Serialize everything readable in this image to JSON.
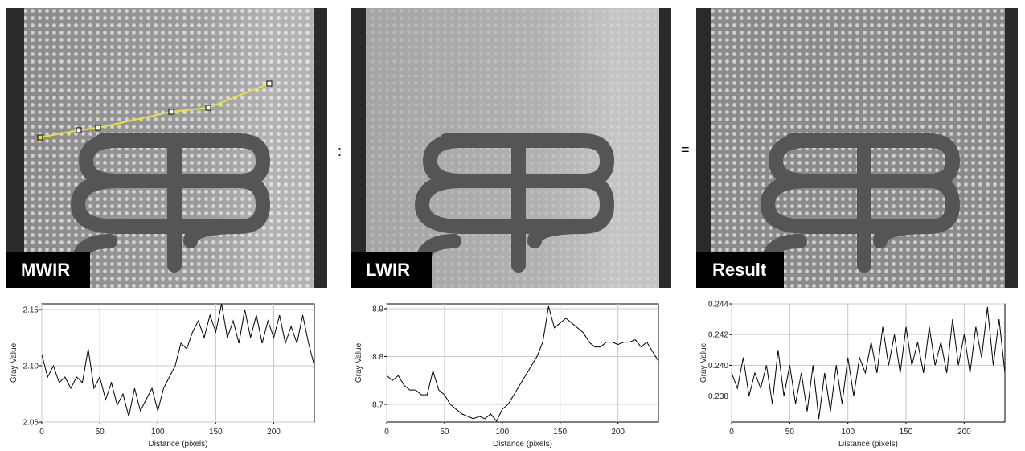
{
  "panels": [
    {
      "label": "MWIR"
    },
    {
      "label": "LWIR"
    },
    {
      "label": "Result"
    }
  ],
  "operators": [
    ":",
    "="
  ],
  "chart_data": [
    {
      "type": "line",
      "xlabel": "Distance (pixels)",
      "ylabel": "Gray Value",
      "x": [
        0,
        5,
        10,
        15,
        20,
        25,
        30,
        35,
        40,
        45,
        50,
        55,
        60,
        65,
        70,
        75,
        80,
        85,
        90,
        95,
        100,
        105,
        110,
        115,
        120,
        125,
        130,
        135,
        140,
        145,
        150,
        155,
        160,
        165,
        170,
        175,
        180,
        185,
        190,
        195,
        200,
        205,
        210,
        215,
        220,
        225,
        230,
        235
      ],
      "series": [
        {
          "color": "#000000",
          "values": [
            2.11,
            2.09,
            2.1,
            2.085,
            2.09,
            2.08,
            2.09,
            2.085,
            2.115,
            2.08,
            2.09,
            2.07,
            2.085,
            2.065,
            2.075,
            2.055,
            2.08,
            2.06,
            2.07,
            2.08,
            2.06,
            2.08,
            2.09,
            2.1,
            2.12,
            2.115,
            2.13,
            2.14,
            2.125,
            2.145,
            2.13,
            2.155,
            2.125,
            2.14,
            2.12,
            2.15,
            2.125,
            2.145,
            2.12,
            2.14,
            2.125,
            2.145,
            2.12,
            2.135,
            2.12,
            2.145,
            2.12,
            2.1
          ]
        }
      ],
      "xlim": [
        0,
        235
      ],
      "ylim": [
        2.05,
        2.155
      ],
      "xticks": [
        0,
        50,
        100,
        150,
        200
      ],
      "yticks": [
        {
          "value": 2.05,
          "label": "2.05"
        },
        {
          "value": 2.1,
          "label": "2.10"
        },
        {
          "value": 2.15,
          "label": "2.15"
        }
      ],
      "grid": true
    },
    {
      "type": "line",
      "xlabel": "Distance (pixels)",
      "ylabel": "Gray Value",
      "x": [
        0,
        5,
        10,
        15,
        20,
        25,
        30,
        35,
        40,
        45,
        50,
        55,
        60,
        65,
        70,
        75,
        80,
        85,
        90,
        95,
        100,
        105,
        110,
        115,
        120,
        125,
        130,
        135,
        140,
        145,
        150,
        155,
        160,
        165,
        170,
        175,
        180,
        185,
        190,
        195,
        200,
        205,
        210,
        215,
        220,
        225,
        230,
        235
      ],
      "series": [
        {
          "color": "#000000",
          "values": [
            8.76,
            8.75,
            8.76,
            8.74,
            8.73,
            8.73,
            8.72,
            8.72,
            8.77,
            8.73,
            8.72,
            8.7,
            8.69,
            8.68,
            8.675,
            8.67,
            8.675,
            8.67,
            8.68,
            8.665,
            8.69,
            8.7,
            8.72,
            8.74,
            8.76,
            8.78,
            8.8,
            8.83,
            8.905,
            8.86,
            8.87,
            8.88,
            8.87,
            8.86,
            8.85,
            8.83,
            8.82,
            8.82,
            8.83,
            8.83,
            8.825,
            8.83,
            8.83,
            8.835,
            8.82,
            8.83,
            8.81,
            8.79
          ]
        }
      ],
      "xlim": [
        0,
        235
      ],
      "ylim": [
        8.663,
        8.91
      ],
      "xticks": [
        0,
        50,
        100,
        150,
        200
      ],
      "yticks": [
        8.7,
        8.8,
        8.9
      ],
      "grid": true
    },
    {
      "type": "line",
      "xlabel": "Distance (pixels)",
      "ylabel": "Gray Value",
      "x": [
        0,
        5,
        10,
        15,
        20,
        25,
        30,
        35,
        40,
        45,
        50,
        55,
        60,
        65,
        70,
        75,
        80,
        85,
        90,
        95,
        100,
        105,
        110,
        115,
        120,
        125,
        130,
        135,
        140,
        145,
        150,
        155,
        160,
        165,
        170,
        175,
        180,
        185,
        190,
        195,
        200,
        205,
        210,
        215,
        220,
        225,
        230,
        235
      ],
      "series": [
        {
          "color": "#000000",
          "values": [
            0.2395,
            0.2385,
            0.2405,
            0.238,
            0.2395,
            0.2385,
            0.24,
            0.2375,
            0.241,
            0.238,
            0.24,
            0.2375,
            0.2395,
            0.237,
            0.24,
            0.2365,
            0.2395,
            0.237,
            0.24,
            0.2375,
            0.2405,
            0.238,
            0.2405,
            0.2395,
            0.2415,
            0.2395,
            0.2425,
            0.24,
            0.242,
            0.2395,
            0.2425,
            0.24,
            0.2415,
            0.2395,
            0.2425,
            0.24,
            0.2415,
            0.2395,
            0.243,
            0.24,
            0.242,
            0.2395,
            0.2425,
            0.2405,
            0.2438,
            0.24,
            0.243,
            0.2395
          ]
        }
      ],
      "xlim": [
        0,
        235
      ],
      "ylim": [
        0.2363,
        0.244
      ],
      "xticks": [
        0,
        50,
        100,
        150,
        200
      ],
      "yticks": [
        {
          "value": 0.238,
          "label": "0.238"
        },
        {
          "value": 0.24,
          "label": "0.240"
        },
        {
          "value": 0.242,
          "label": "0.242"
        },
        {
          "value": 0.244,
          "label": "0.244"
        }
      ],
      "grid": true
    }
  ]
}
